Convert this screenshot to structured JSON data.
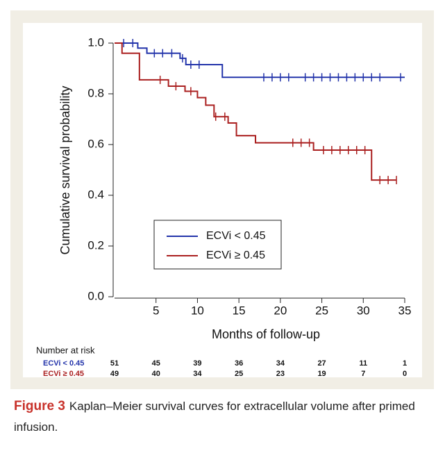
{
  "chart_data": {
    "type": "step",
    "ylabel": "Cumulative survival probability",
    "xlabel": "Months of follow-up",
    "xlim": [
      0,
      35
    ],
    "ylim": [
      0,
      1.0
    ],
    "xticks": [
      5,
      10,
      15,
      20,
      25,
      30,
      35
    ],
    "yticks": [
      {
        "value": 0,
        "label": "0.0"
      },
      {
        "value": 0.2,
        "label": "0.2"
      },
      {
        "value": 0.4,
        "label": "0.4"
      },
      {
        "value": 0.6,
        "label": "0.6"
      },
      {
        "value": 0.8,
        "label": "0.8"
      },
      {
        "value": 1.0,
        "label": "1.0"
      }
    ],
    "risk_title": "Number at risk",
    "series": [
      {
        "name": "ECVi < 0.45",
        "risk_label": "ECVi < 0.45",
        "color": "#2233aa",
        "x": [
          0,
          2.8,
          3.9,
          7.9,
          8.6,
          13
        ],
        "values": [
          1.0,
          0.98,
          0.96,
          0.94,
          0.915,
          0.865
        ],
        "end": 35,
        "censored": [
          1.1,
          2.2,
          4.8,
          5.8,
          6.9,
          8.2,
          9.2,
          10.2,
          18,
          19,
          20,
          21,
          23,
          24,
          25,
          26,
          27,
          28,
          29,
          30,
          31,
          32,
          34.5
        ],
        "at_risk": [
          51,
          45,
          39,
          36,
          34,
          27,
          11,
          1
        ]
      },
      {
        "name": "ECVi ≥ 0.45",
        "risk_label": "ECVi ≥ 0.45",
        "color": "#aa1f1f",
        "x": [
          0,
          0.9,
          3,
          6.5,
          8.5,
          10,
          11,
          12,
          13.7,
          14.7,
          17,
          24,
          31
        ],
        "values": [
          1.0,
          0.96,
          0.855,
          0.83,
          0.81,
          0.785,
          0.755,
          0.71,
          0.685,
          0.635,
          0.607,
          0.578,
          0.46
        ],
        "end": 34,
        "censored": [
          5.5,
          7.4,
          9.2,
          12.2,
          13.3,
          21.5,
          22.5,
          23.5,
          25.2,
          26.2,
          27.2,
          28.2,
          29.2,
          30.2,
          32,
          33,
          34
        ],
        "at_risk": [
          49,
          40,
          34,
          25,
          23,
          19,
          7,
          0
        ]
      }
    ]
  },
  "caption": {
    "label": "Figure 3",
    "text": "Kaplan–Meier survival curves for extracellular volume after primed infusion."
  }
}
